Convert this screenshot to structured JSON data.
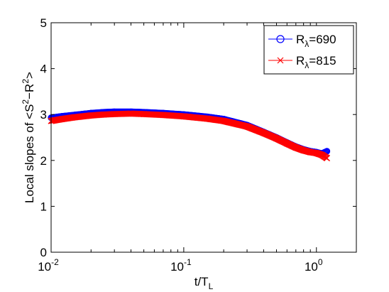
{
  "chart_data": {
    "type": "scatter",
    "xscale": "log",
    "xlim": [
      0.01,
      2.0
    ],
    "ylim": [
      0,
      5
    ],
    "xlabel": "t/T_L",
    "ylabel": "Local slopes of <S^2-R^2>",
    "xticks": [
      {
        "value": 0.01,
        "base": "10",
        "exp": "-2"
      },
      {
        "value": 0.1,
        "base": "10",
        "exp": "-1"
      },
      {
        "value": 1,
        "base": "10",
        "exp": "0"
      }
    ],
    "yticks": [
      0,
      1,
      2,
      3,
      4,
      5
    ],
    "ytick_labels": [
      "0",
      "1",
      "2",
      "3",
      "4",
      "5"
    ],
    "grid": false,
    "legend_position": "top-right",
    "series": [
      {
        "name": "R_λ=690",
        "label_base": "R",
        "label_sub": "λ",
        "label_rest": "=690",
        "marker": "circle",
        "color": "#0000ff",
        "x": [
          0.01,
          0.012,
          0.015,
          0.02,
          0.025,
          0.03,
          0.04,
          0.05,
          0.07,
          0.1,
          0.15,
          0.2,
          0.3,
          0.4,
          0.5,
          0.6,
          0.7,
          0.8,
          0.9,
          1.0,
          1.1,
          1.2
        ],
        "y": [
          2.93,
          2.96,
          2.99,
          3.03,
          3.05,
          3.06,
          3.06,
          3.05,
          3.03,
          3.0,
          2.95,
          2.9,
          2.77,
          2.62,
          2.5,
          2.39,
          2.3,
          2.24,
          2.2,
          2.18,
          2.15,
          2.2
        ]
      },
      {
        "name": "R_λ=815",
        "label_base": "R",
        "label_sub": "λ",
        "label_rest": "=815",
        "marker": "cross",
        "color": "#ff0000",
        "x": [
          0.01,
          0.012,
          0.015,
          0.02,
          0.025,
          0.03,
          0.04,
          0.05,
          0.07,
          0.1,
          0.15,
          0.2,
          0.3,
          0.4,
          0.5,
          0.6,
          0.7,
          0.8,
          0.9,
          1.0,
          1.1,
          1.2
        ],
        "y": [
          2.86,
          2.9,
          2.94,
          2.98,
          3.0,
          3.01,
          3.02,
          3.01,
          2.99,
          2.96,
          2.91,
          2.86,
          2.74,
          2.6,
          2.48,
          2.37,
          2.28,
          2.22,
          2.18,
          2.16,
          2.12,
          2.05
        ]
      }
    ]
  }
}
